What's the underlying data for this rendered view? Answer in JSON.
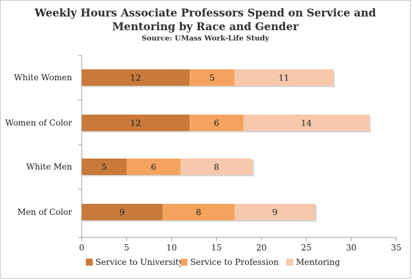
{
  "chart_data": {
    "type": "bar",
    "orientation": "horizontal",
    "stacked": true,
    "title_line1": "Weekly Hours Associate Professors Spend on Service and",
    "title_line2": "Mentoring by Race and Gender",
    "subtitle": "Source: UMass Work-Life Study",
    "categories": [
      "White Women",
      "Women of Color",
      "White Men",
      "Men of Color"
    ],
    "series": [
      {
        "name": "Service to University",
        "values": [
          12,
          12,
          5,
          9
        ],
        "color": "#c97a3a"
      },
      {
        "name": "Service to Profession",
        "values": [
          5,
          6,
          6,
          8
        ],
        "color": "#f4a35f"
      },
      {
        "name": "Mentoring",
        "values": [
          11,
          14,
          8,
          9
        ],
        "color": "#f8c8ad"
      }
    ],
    "xlim": [
      0,
      35
    ],
    "xticks": [
      0,
      5,
      10,
      15,
      20,
      25,
      30,
      35
    ],
    "xlabel": "",
    "ylabel": "",
    "grid": false,
    "legend_position": "bottom"
  }
}
